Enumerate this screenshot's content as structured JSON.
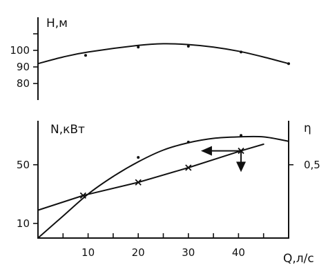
{
  "chart_data": [
    {
      "type": "line",
      "panel": "head",
      "ylabel": "H,м",
      "yticks": [
        100,
        90,
        80
      ],
      "ylim": [
        70,
        120
      ],
      "xlim": [
        0,
        50
      ],
      "series": [
        {
          "curve": [
            [
              0,
              92
            ],
            [
              5,
              96
            ],
            [
              10,
              99
            ],
            [
              20,
              103
            ],
            [
              25,
              104
            ],
            [
              30,
              103.5
            ],
            [
              35,
              102
            ],
            [
              40,
              99.5
            ],
            [
              45,
              96
            ],
            [
              50,
              92
            ]
          ],
          "points": [
            [
              9.5,
              97
            ],
            [
              20,
              102
            ],
            [
              30,
              102.5
            ],
            [
              40.5,
              99
            ],
            [
              50,
              92
            ]
          ]
        }
      ]
    },
    {
      "type": "line",
      "panel": "power-efficiency",
      "xlabel": "Q,л/с",
      "xticks": [
        10,
        20,
        30,
        40
      ],
      "xlim": [
        0,
        50
      ],
      "ylabel_left": "N,кВт",
      "yticks_left": [
        50,
        10
      ],
      "ylim_left": [
        0,
        80
      ],
      "ylabel_right": "η",
      "yticks_right": [
        "0,5"
      ],
      "series": [
        {
          "axis": "left",
          "curve": [
            [
              0,
              0
            ],
            [
              5,
              15
            ],
            [
              10,
              30
            ],
            [
              15,
              42
            ],
            [
              20,
              52
            ],
            [
              25,
              60
            ],
            [
              30,
              65
            ],
            [
              35,
              68
            ],
            [
              40,
              69
            ],
            [
              45,
              69
            ],
            [
              50,
              66
            ]
          ],
          "points": [
            [
              20,
              55
            ],
            [
              30,
              65.5
            ],
            [
              40.5,
              70
            ]
          ]
        },
        {
          "axis": "left",
          "curve": [
            [
              0,
              19
            ],
            [
              9,
              29
            ],
            [
              20,
              38
            ],
            [
              30,
              48
            ],
            [
              40.5,
              59.5
            ],
            [
              45,
              64
            ]
          ],
          "x_markers": [
            [
              9,
              29
            ],
            [
              20,
              38
            ],
            [
              30,
              48
            ],
            [
              40.5,
              59.5
            ]
          ]
        }
      ],
      "annotation": {
        "from": [
          40.5,
          59.5
        ],
        "left_to": [
          32.5,
          59.5
        ],
        "down_to": [
          40.5,
          45
        ]
      }
    }
  ]
}
